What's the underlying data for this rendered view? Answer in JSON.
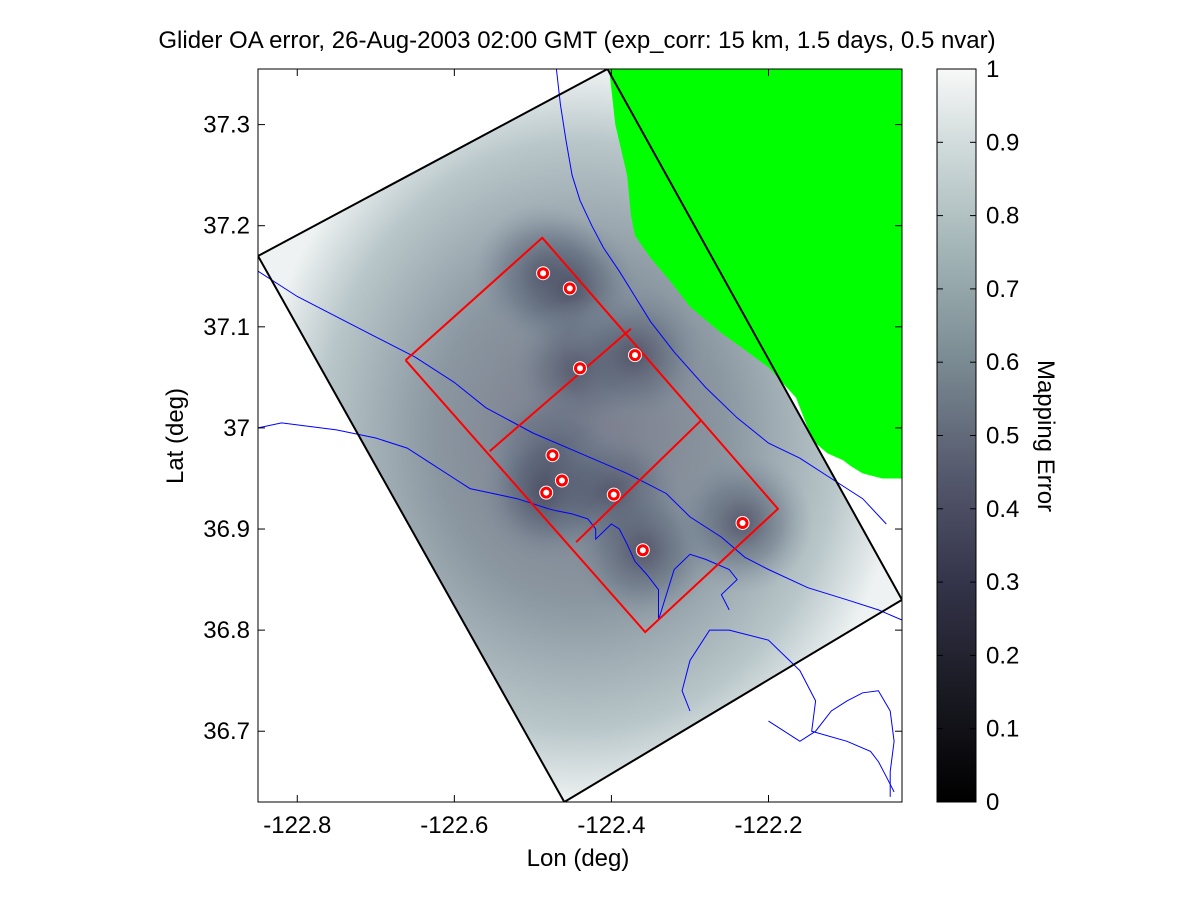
{
  "chart_data": {
    "type": "heatmap",
    "title": "Glider OA error, 26-Aug-2003 02:00 GMT (exp_corr: 15 km, 1.5 days, 0.5 nvar)",
    "xlabel": "Lon (deg)",
    "ylabel": "Lat (deg)",
    "xlim": [
      -122.85,
      -122.03
    ],
    "ylim": [
      36.63,
      37.355
    ],
    "xticks": [
      -122.8,
      -122.6,
      -122.4,
      -122.2
    ],
    "xtick_labels": [
      "-122.8",
      "-122.6",
      "-122.4",
      "-122.2"
    ],
    "yticks": [
      36.7,
      36.8,
      36.9,
      37.0,
      37.1,
      37.2,
      37.3
    ],
    "ytick_labels": [
      "36.7",
      "36.8",
      "36.9",
      "37",
      "37.1",
      "37.2",
      "37.3"
    ],
    "colorbar": {
      "label": "Mapping Error",
      "range": [
        0,
        1
      ],
      "ticks": [
        0,
        0.1,
        0.2,
        0.3,
        0.4,
        0.5,
        0.6,
        0.7,
        0.8,
        0.9,
        1
      ],
      "tick_labels": [
        "0",
        "0.1",
        "0.2",
        "0.3",
        "0.4",
        "0.5",
        "0.6",
        "0.7",
        "0.8",
        "0.9",
        "1"
      ]
    },
    "domain_outline": {
      "name": "OA domain",
      "color": "#000000",
      "lon": [
        -122.85,
        -122.405,
        -122.03,
        -122.46,
        -122.85
      ],
      "lat": [
        37.17,
        37.355,
        36.83,
        36.63,
        37.17
      ]
    },
    "track_boxes": {
      "name": "glider track",
      "color": "#ff0000",
      "segments": [
        {
          "lon": [
            -122.662,
            -122.488,
            -122.188,
            -122.357,
            -122.662
          ],
          "lat": [
            37.067,
            37.188,
            36.92,
            36.798,
            37.067
          ]
        },
        {
          "lon": [
            -122.555,
            -122.375
          ],
          "lat": [
            36.977,
            37.098
          ]
        },
        {
          "lon": [
            -122.445,
            -122.285
          ],
          "lat": [
            36.887,
            37.008
          ]
        }
      ]
    },
    "glider_positions": {
      "name": "glider profiles",
      "color": "#ff0000",
      "lon": [
        -122.487,
        -122.453,
        -122.44,
        -122.37,
        -122.475,
        -122.463,
        -122.483,
        -122.397,
        -122.36,
        -122.233
      ],
      "lat": [
        37.153,
        37.138,
        37.059,
        37.072,
        36.973,
        36.948,
        36.936,
        36.934,
        36.879,
        36.906
      ]
    },
    "land": {
      "name": "land",
      "color": "#00ff00",
      "lon": [
        -122.403,
        -122.03,
        -122.03,
        -122.055,
        -122.08,
        -122.095,
        -122.105,
        -122.125,
        -122.14,
        -122.15,
        -122.165,
        -122.2,
        -122.235,
        -122.262,
        -122.3,
        -122.325,
        -122.35,
        -122.37,
        -122.375,
        -122.38,
        -122.395,
        -122.403
      ],
      "lat": [
        37.355,
        37.355,
        36.95,
        36.95,
        36.955,
        36.962,
        36.968,
        36.975,
        36.985,
        37.0,
        37.03,
        37.06,
        37.08,
        37.095,
        37.12,
        37.145,
        37.168,
        37.19,
        37.21,
        37.25,
        37.3,
        37.355
      ]
    },
    "bathymetry_contours": {
      "color": "#0000ff",
      "lines": [
        {
          "lon": [
            -122.47,
            -122.465,
            -122.458,
            -122.45,
            -122.44,
            -122.425,
            -122.41,
            -122.39,
            -122.37,
            -122.35,
            -122.32,
            -122.28,
            -122.24,
            -122.2,
            -122.16,
            -122.12,
            -122.08,
            -122.05
          ],
          "lat": [
            37.355,
            37.32,
            37.285,
            37.25,
            37.225,
            37.2,
            37.178,
            37.155,
            37.13,
            37.105,
            37.075,
            37.04,
            37.01,
            36.985,
            36.97,
            36.95,
            36.93,
            36.905
          ]
        },
        {
          "lon": [
            -122.85,
            -122.8,
            -122.75,
            -122.7,
            -122.65,
            -122.6,
            -122.56,
            -122.5,
            -122.44,
            -122.38,
            -122.33,
            -122.3,
            -122.26,
            -122.23,
            -122.2,
            -122.15,
            -122.1,
            -122.06,
            -122.03
          ],
          "lat": [
            37.155,
            37.13,
            37.11,
            37.09,
            37.07,
            37.045,
            37.02,
            36.995,
            36.975,
            36.955,
            36.935,
            36.912,
            36.892,
            36.872,
            36.86,
            36.842,
            36.83,
            36.82,
            36.81
          ]
        },
        {
          "lon": [
            -122.85,
            -122.82,
            -122.79,
            -122.75,
            -122.7,
            -122.66,
            -122.63,
            -122.6,
            -122.58,
            -122.55,
            -122.52,
            -122.5,
            -122.48,
            -122.47,
            -122.45,
            -122.43,
            -122.42,
            -122.42,
            -122.4,
            -122.39,
            -122.38,
            -122.37,
            -122.355,
            -122.34,
            -122.34,
            -122.32,
            -122.3,
            -122.28,
            -122.25,
            -122.24,
            -122.26,
            -122.25
          ],
          "lat": [
            37.0,
            37.005,
            37.002,
            36.998,
            36.99,
            36.98,
            36.965,
            36.95,
            36.94,
            36.935,
            36.93,
            36.925,
            36.92,
            36.918,
            36.915,
            36.91,
            36.9,
            36.89,
            36.905,
            36.9,
            36.885,
            36.868,
            36.855,
            36.84,
            36.81,
            36.86,
            36.875,
            36.87,
            36.86,
            36.85,
            36.835,
            36.82
          ]
        },
        {
          "lon": [
            -122.3,
            -122.31,
            -122.3,
            -122.275,
            -122.25,
            -122.2,
            -122.16,
            -122.14,
            -122.145,
            -122.1,
            -122.07,
            -122.06,
            -122.05,
            -122.04
          ],
          "lat": [
            36.72,
            36.74,
            36.77,
            36.8,
            36.8,
            36.79,
            36.76,
            36.73,
            36.7,
            36.69,
            36.68,
            36.67,
            36.655,
            36.64
          ]
        },
        {
          "lon": [
            -122.2,
            -122.16,
            -122.14,
            -122.12,
            -122.1,
            -122.08,
            -122.06,
            -122.045,
            -122.04,
            -122.045,
            -122.045
          ],
          "lat": [
            36.71,
            36.69,
            36.7,
            36.72,
            36.73,
            36.738,
            36.74,
            36.72,
            36.69,
            36.66,
            36.635
          ]
        }
      ]
    }
  }
}
